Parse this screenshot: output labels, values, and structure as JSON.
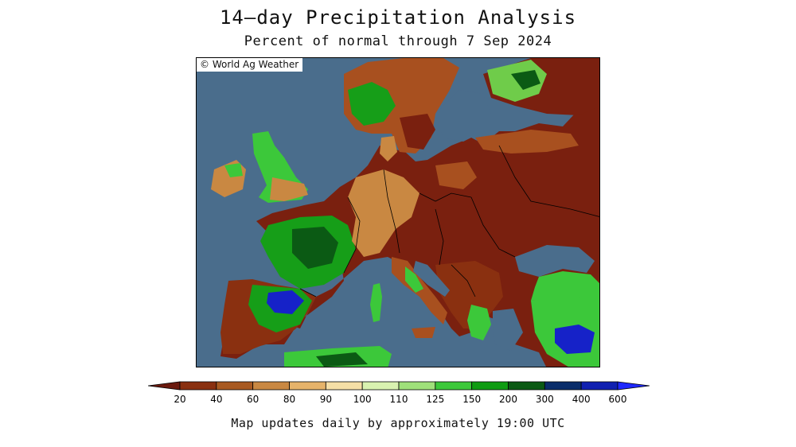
{
  "title": "14–day Precipitation Analysis",
  "subtitle": "Percent of normal through 7 Sep 2024",
  "copyright": "© World Ag Weather",
  "footer": "Map updates daily by approximately 19:00 UTC",
  "legend": {
    "ticks": [
      "20",
      "40",
      "60",
      "80",
      "90",
      "100",
      "110",
      "125",
      "150",
      "200",
      "300",
      "400",
      "600"
    ],
    "colors": [
      "#6b1a0e",
      "#8a3010",
      "#a85a22",
      "#c98842",
      "#e6b36a",
      "#f6dfa6",
      "#d9f2b0",
      "#9fe07a",
      "#3cc83a",
      "#0f9c12",
      "#0b5a14",
      "#0a2d6a",
      "#1020b0",
      "#1e28ff"
    ]
  },
  "colors": {
    "ocean": "#4a6d8c",
    "very_dry": "#7a200f",
    "dry": "#a8501f",
    "below_normal": "#c98842",
    "near_normal": "#f3d99a",
    "above_normal": "#6fcc4a",
    "wet": "#169e18",
    "very_wet": "#0b5a14",
    "extreme_wet": "#1622c8"
  }
}
